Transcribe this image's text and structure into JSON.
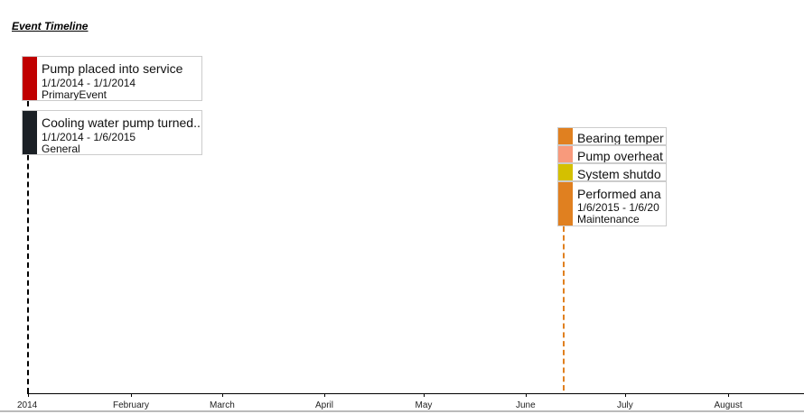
{
  "title": "Event Timeline",
  "events": [
    {
      "label": "Pump placed into service",
      "dates": "1/1/2014 - 1/1/2014",
      "category": "PrimaryEvent",
      "color": "#c00000"
    },
    {
      "label": "Cooling water pump turned...",
      "dates": "1/1/2014 - 1/6/2015",
      "category": "General",
      "color": "#1b2025"
    },
    {
      "label": "Bearing temper",
      "color": "#e08020"
    },
    {
      "label": "Pump overheat",
      "color": "#f89a7c"
    },
    {
      "label": "System shutdo",
      "color": "#d4c000"
    },
    {
      "label": "Performed ana",
      "dates": "1/6/2015 - 1/6/20",
      "category": "Maintenance",
      "color": "#e08020"
    }
  ],
  "axis": {
    "labels": [
      "2014",
      "February",
      "March",
      "April",
      "May",
      "June",
      "July",
      "August"
    ]
  }
}
